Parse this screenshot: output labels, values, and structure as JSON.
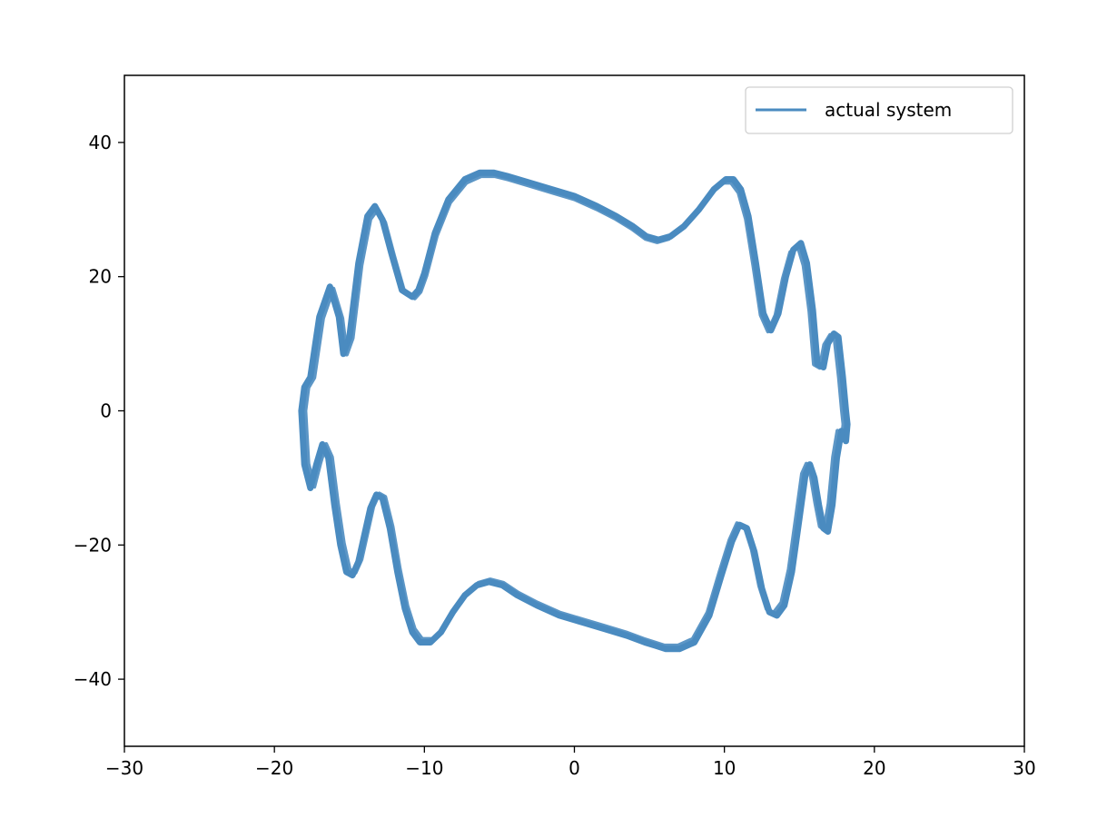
{
  "chart_data": {
    "type": "line",
    "title": "",
    "xlabel": "",
    "ylabel": "",
    "xlim": [
      -30,
      30
    ],
    "ylim": [
      -50,
      50
    ],
    "xticks": [
      -30,
      -20,
      -10,
      0,
      10,
      20,
      30
    ],
    "yticks": [
      -40,
      -20,
      0,
      20,
      40
    ],
    "grid": false,
    "legend": {
      "placement": "top-right"
    },
    "series": [
      {
        "name": "actual system",
        "color": "#4a8bc0",
        "x": [
          -18.2,
          -18.0,
          -17.6,
          -17.0,
          -16.3,
          -15.7,
          -15.4,
          -15.0,
          -14.4,
          -13.8,
          -13.3,
          -12.8,
          -12.2,
          -11.5,
          -10.8,
          -10.4,
          -10.0,
          -9.3,
          -8.4,
          -7.3,
          -6.3,
          -5.4,
          -4.5,
          -3.0,
          -1.5,
          0.0,
          1.5,
          2.8,
          3.9,
          4.8,
          5.6,
          6.4,
          7.3,
          8.3,
          9.3,
          10.1,
          10.6,
          11.1,
          11.6,
          12.1,
          12.6,
          13.1,
          13.6,
          14.1,
          14.6,
          15.1,
          15.5,
          15.9,
          16.2,
          16.6,
          16.9,
          17.3,
          17.6,
          17.9,
          18.1,
          18.2,
          18.1,
          17.8,
          17.5,
          17.2,
          16.9,
          16.6,
          16.3,
          16.0,
          15.7,
          15.4,
          15.0,
          14.5,
          14.0,
          13.5,
          13.0,
          12.5,
          12.0,
          11.5,
          11.0,
          10.5,
          9.8,
          9.0,
          8.0,
          7.0,
          6.1,
          5.4,
          4.7,
          3.5,
          2.0,
          0.5,
          -1.0,
          -2.5,
          -3.8,
          -4.8,
          -5.7,
          -6.5,
          -7.3,
          -8.1,
          -8.9,
          -9.6,
          -10.3,
          -10.8,
          -11.3,
          -11.8,
          -12.3,
          -12.8,
          -13.2,
          -13.6,
          -14.0,
          -14.4,
          -14.8,
          -15.2,
          -15.6,
          -16.0,
          -16.4,
          -16.8,
          -17.2,
          -17.6,
          -18.0,
          -18.2
        ],
        "y": [
          0.0,
          3.5,
          5.0,
          14.0,
          18.5,
          14.0,
          8.5,
          11.0,
          22.0,
          29.0,
          30.5,
          28.5,
          23.5,
          18.0,
          17.0,
          18.0,
          20.5,
          26.5,
          31.5,
          34.5,
          35.5,
          35.5,
          35.0,
          34.0,
          33.0,
          32.0,
          30.5,
          29.0,
          27.5,
          26.0,
          25.5,
          26.0,
          27.5,
          30.0,
          33.0,
          34.5,
          34.5,
          33.0,
          29.0,
          22.0,
          14.5,
          12.0,
          14.5,
          20.0,
          24.0,
          25.0,
          22.0,
          15.0,
          7.0,
          6.5,
          10.0,
          11.5,
          11.0,
          5.0,
          0.0,
          -2.0,
          -4.5,
          -3.0,
          -7.0,
          -14.0,
          -18.0,
          -17.5,
          -14.0,
          -10.0,
          -8.0,
          -9.5,
          -16.0,
          -24.0,
          -29.0,
          -30.5,
          -30.0,
          -26.5,
          -21.0,
          -17.5,
          -17.0,
          -19.5,
          -24.5,
          -30.5,
          -34.5,
          -35.5,
          -35.5,
          -35.0,
          -34.5,
          -33.5,
          -32.5,
          -31.5,
          -30.5,
          -29.0,
          -27.5,
          -26.0,
          -25.5,
          -26.0,
          -27.5,
          -30.0,
          -33.0,
          -34.5,
          -34.5,
          -33.0,
          -29.5,
          -24.0,
          -17.5,
          -13.0,
          -12.5,
          -14.5,
          -18.5,
          -22.5,
          -24.5,
          -24.0,
          -20.0,
          -14.0,
          -7.0,
          -5.0,
          -8.0,
          -11.5,
          -8.0,
          0.0
        ]
      }
    ]
  }
}
